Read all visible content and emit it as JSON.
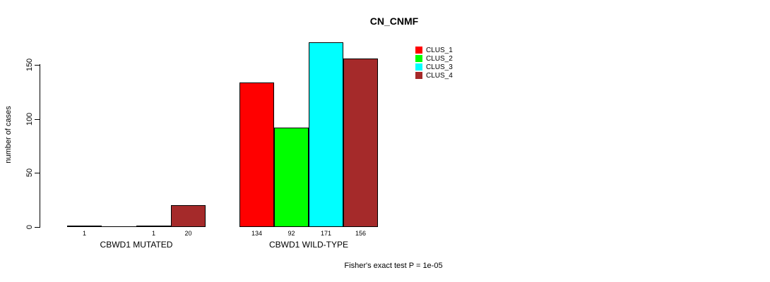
{
  "title": "CN_CNMF",
  "y_axis": {
    "label": "number of cases"
  },
  "footer": {
    "text": "Fisher's exact test P = 1e-05"
  },
  "chart_data": {
    "type": "bar",
    "title": "CN_CNMF",
    "xlabel": "",
    "ylabel": "number of cases",
    "yticks": [
      0,
      50,
      100,
      150
    ],
    "ylim": [
      0,
      175
    ],
    "grid": false,
    "legend_position": "top-right",
    "categories": [
      "CBWD1 MUTATED",
      "CBWD1 WILD-TYPE"
    ],
    "series": [
      {
        "name": "CLUS_1",
        "color": "#FF0000",
        "values": [
          1,
          134
        ]
      },
      {
        "name": "CLUS_2",
        "color": "#00FF00",
        "values": [
          0,
          92
        ]
      },
      {
        "name": "CLUS_3",
        "color": "#00FFFF",
        "values": [
          1,
          171
        ]
      },
      {
        "name": "CLUS_4",
        "color": "#A52A2A",
        "values": [
          20,
          156
        ]
      }
    ],
    "bar_value_labels": [
      [
        "1",
        "",
        "1",
        "20"
      ],
      [
        "134",
        "92",
        "171",
        "156"
      ]
    ],
    "annotation": "Fisher's exact test P = 1e-05",
    "bar_border_color": "#000000",
    "axis_color": "#000000"
  }
}
